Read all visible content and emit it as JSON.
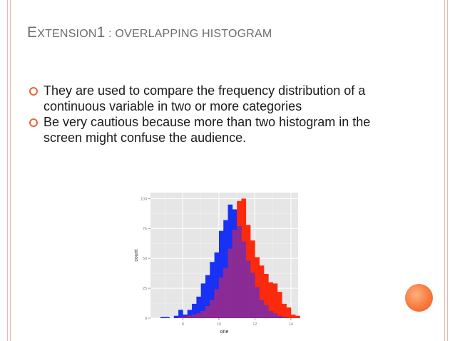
{
  "slide": {
    "title_big": "E",
    "title_rest1": "XTENSION",
    "title_num": "1",
    "title_rest2": " : OVERLAPPING HISTOGRAM",
    "bullets": [
      "They are used to compare the frequency distribution of a continuous variable in two or more categories",
      "Be very cautious because more than two histogram in the screen might confuse the audience."
    ],
    "colors": {
      "accent": "#e8673a",
      "title": "#6d6d6d",
      "text": "#1a1a1a"
    }
  },
  "chart_data": {
    "type": "bar",
    "xlabel": "one",
    "ylabel": "count",
    "xlim": [
      6.2,
      14.4
    ],
    "ylim": [
      0,
      105
    ],
    "x_ticks": [
      "8",
      "10",
      "12",
      "14"
    ],
    "y_ticks": [
      "0",
      "25",
      "50",
      "75",
      "100"
    ],
    "bin_width": 0.25,
    "grid": true,
    "colors": {
      "panel": "#e6e6e6",
      "gridMajor": "#ffffff",
      "gridMinor": "#f1f1f1",
      "blue": "#1930f5",
      "red": "#fb2a0c",
      "overlap": "#8a2b96"
    },
    "series": [
      {
        "color": "#1930f5",
        "bins_start": 6.75,
        "values": [
          1,
          1,
          0,
          2,
          7,
          3,
          7,
          12,
          18,
          29,
          36,
          47,
          55,
          73,
          82,
          95,
          91,
          77,
          64,
          48,
          38,
          26,
          15,
          11,
          6,
          4,
          2,
          1
        ]
      },
      {
        "color": "#fb2a0c",
        "bins_start": 7.75,
        "values": [
          1,
          1,
          2,
          3,
          4,
          6,
          10,
          15,
          24,
          34,
          42,
          58,
          74,
          98,
          100,
          78,
          65,
          51,
          44,
          37,
          30,
          29,
          22,
          12,
          9,
          3,
          2
        ]
      }
    ]
  }
}
